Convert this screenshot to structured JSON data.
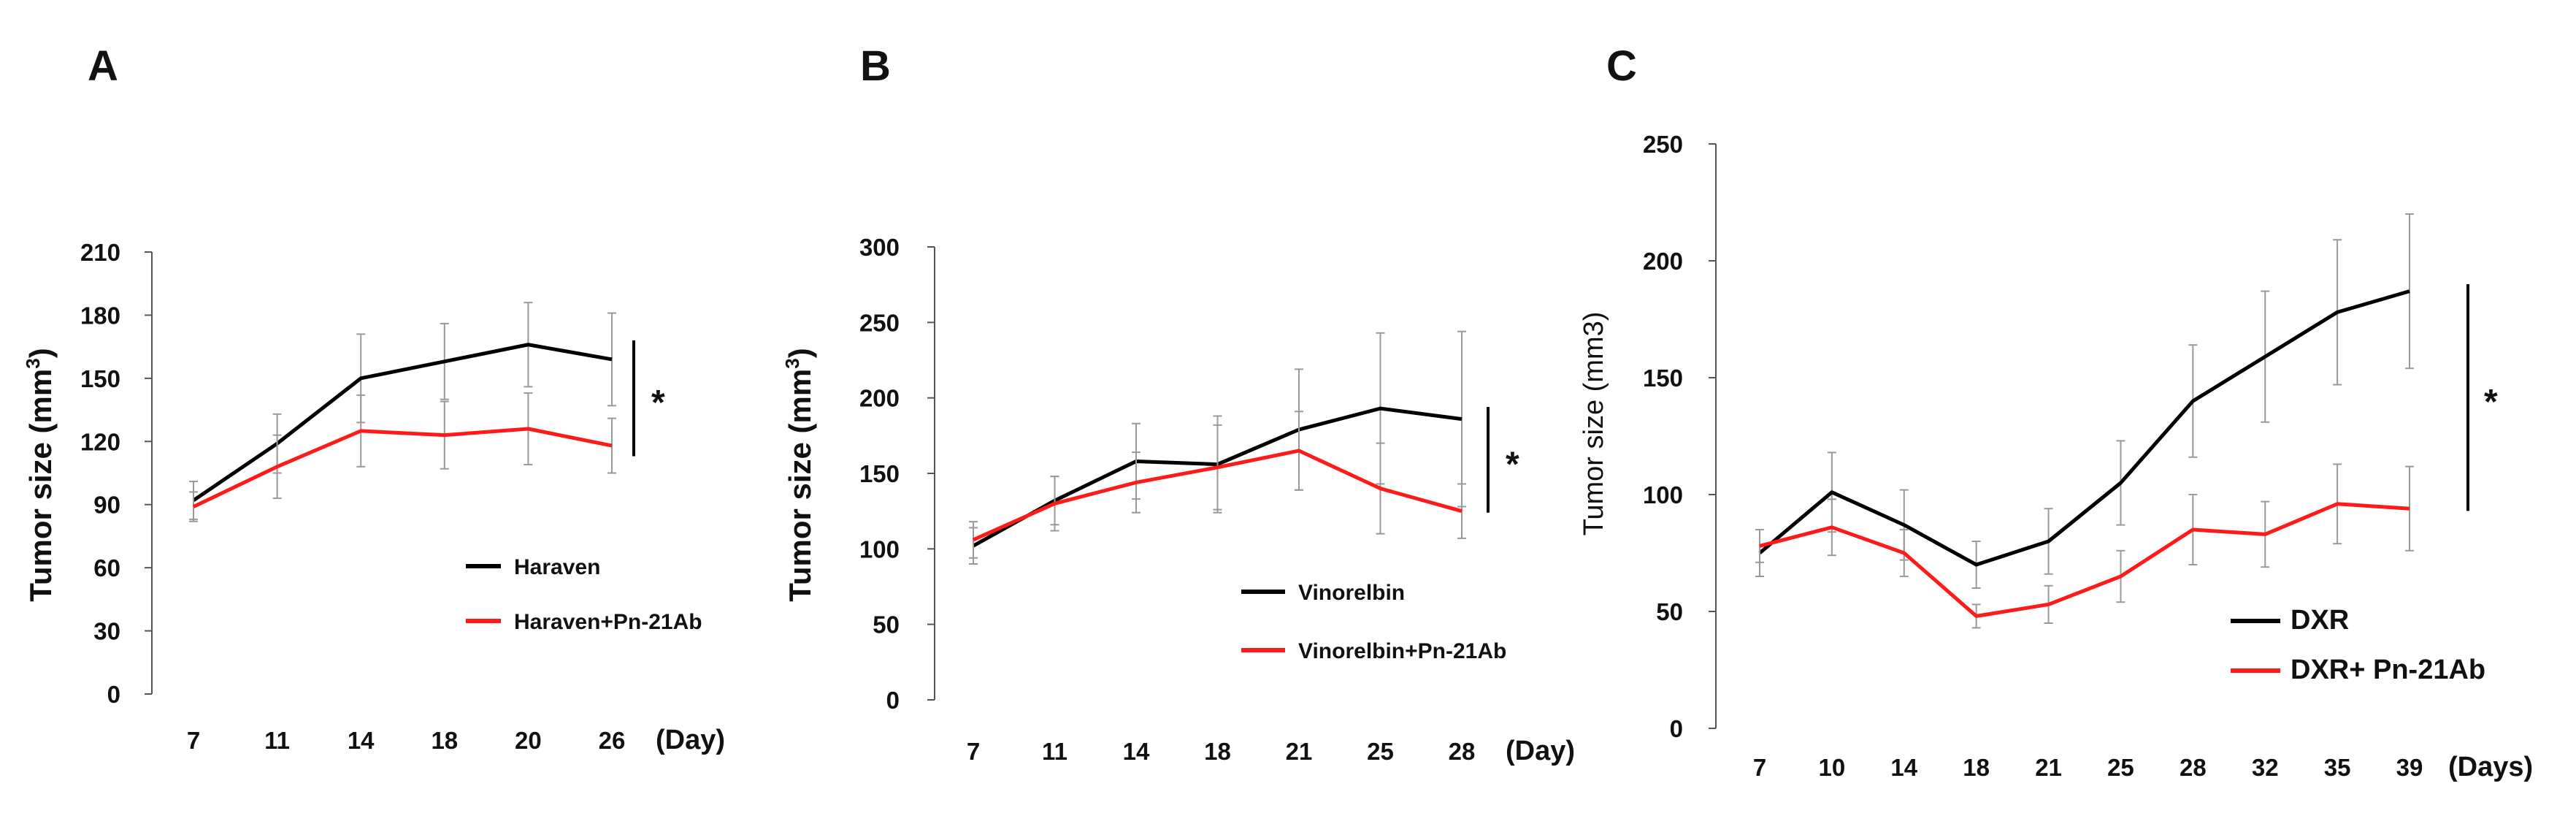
{
  "colors": {
    "control": "#000000",
    "combo": "#ff1a1a",
    "error": "#999999",
    "axis": "#555555"
  },
  "chart_data": [
    {
      "type": "line",
      "panel": "A",
      "categories": [
        "7",
        "11",
        "14",
        "18",
        "20",
        "26"
      ],
      "x_unit": "(Day)",
      "ylabel": "Tumor size (mm",
      "ylabel_sup": "3",
      "ylabel_close": ")",
      "ylim": [
        0,
        210
      ],
      "yticks": [
        0,
        30,
        60,
        90,
        120,
        150,
        180,
        210
      ],
      "series": [
        {
          "name": "Haraven",
          "values": [
            92,
            119,
            150,
            158,
            166,
            159
          ],
          "errors": [
            9,
            14,
            21,
            18,
            20,
            22
          ]
        },
        {
          "name": "Haraven+Pn-21Ab",
          "values": [
            89,
            108,
            125,
            123,
            126,
            118
          ],
          "errors": [
            7,
            15,
            17,
            16,
            17,
            13
          ]
        }
      ],
      "significance": "*",
      "significance_range": [
        113,
        168
      ]
    },
    {
      "type": "line",
      "panel": "B",
      "categories": [
        "7",
        "11",
        "14",
        "18",
        "21",
        "25",
        "28"
      ],
      "x_unit": "(Day)",
      "ylabel": "Tumor size (mm",
      "ylabel_sup": "3",
      "ylabel_close": ")",
      "ylim": [
        0,
        300
      ],
      "yticks": [
        0,
        50,
        100,
        150,
        200,
        250,
        300
      ],
      "series": [
        {
          "name": "Vinorelbin",
          "values": [
            102,
            132,
            158,
            156,
            179,
            193,
            186
          ],
          "errors": [
            12,
            16,
            25,
            32,
            40,
            50,
            58
          ]
        },
        {
          "name": "Vinorelbin+Pn-21Ab",
          "values": [
            106,
            130,
            144,
            154,
            165,
            140,
            125
          ],
          "errors": [
            12,
            18,
            20,
            28,
            26,
            30,
            18
          ]
        }
      ],
      "significance": "*",
      "significance_range": [
        124,
        194
      ]
    },
    {
      "type": "line",
      "panel": "C",
      "categories": [
        "7",
        "10",
        "14",
        "18",
        "21",
        "25",
        "28",
        "32",
        "35",
        "39"
      ],
      "x_unit": "(Days)",
      "ylabel": "Tumor size (mm3)",
      "ylim": [
        0,
        250
      ],
      "yticks": [
        0,
        50,
        100,
        150,
        200,
        250
      ],
      "series": [
        {
          "name": "DXR",
          "values": [
            75,
            101,
            87,
            70,
            80,
            105,
            140,
            159,
            178,
            187
          ],
          "errors": [
            10,
            17,
            15,
            10,
            14,
            18,
            24,
            28,
            31,
            33
          ]
        },
        {
          "name": "DXR+ Pn-21Ab",
          "values": [
            78,
            86,
            75,
            48,
            53,
            65,
            85,
            83,
            96,
            94
          ],
          "errors": [
            7,
            12,
            10,
            5,
            8,
            11,
            15,
            14,
            17,
            18
          ]
        }
      ],
      "significance": "*",
      "significance_range": [
        93,
        190
      ]
    }
  ]
}
